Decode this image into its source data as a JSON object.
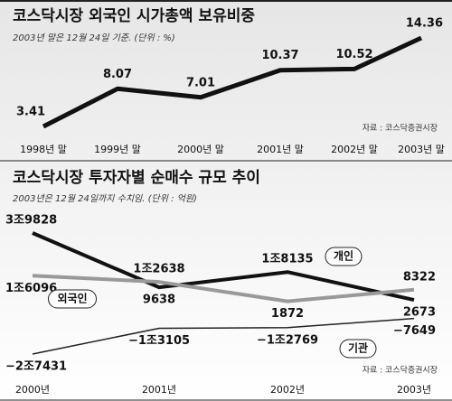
{
  "chart_data": [
    {
      "type": "line",
      "title": "코스닥시장 외국인 시가총액 보유비중",
      "subtitle": "2003년 말은 12월 24일 기준. (단위 : %)",
      "source": "자료 : 코스닥증권시장",
      "categories": [
        "1998년 말",
        "1999년 말",
        "2000년 말",
        "2001년 말",
        "2002년 말",
        "2003년 말"
      ],
      "values": [
        3.41,
        8.07,
        7.01,
        10.37,
        10.52,
        14.36
      ],
      "color": "#111111"
    },
    {
      "type": "line",
      "title": "코스닥시장 투자자별 순매수 규모 추이",
      "subtitle": "2003년은 12월 24일까지 수치임. (단위 : 억원)",
      "source": "자료 : 코스닥증권시장",
      "categories": [
        "2000년",
        "2001년",
        "2002년",
        "2003년"
      ],
      "series": [
        {
          "name": "개인",
          "color": "#111111",
          "values": [
            39828,
            9638,
            18135,
            2673
          ],
          "value_labels": [
            "3조9828",
            "9638",
            "1조8135",
            "2673"
          ]
        },
        {
          "name": "외국인",
          "color": "#999999",
          "values": [
            16096,
            12638,
            1872,
            8322
          ],
          "value_labels": [
            "1조6096",
            "1조2638",
            "1872",
            "8322"
          ]
        },
        {
          "name": "기관",
          "color": "#222222",
          "values": [
            -27431,
            -13105,
            -12769,
            -7649
          ],
          "value_labels": [
            "−2조7431",
            "−1조3105",
            "−1조2769",
            "−7649"
          ]
        }
      ]
    }
  ]
}
